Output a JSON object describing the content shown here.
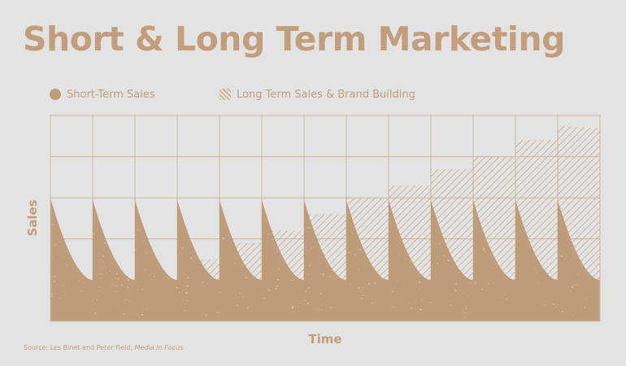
{
  "title": "Short & Long Term Marketing",
  "legend": {
    "short": "Short-Term Sales",
    "long": "Long Term Sales & Brand Building"
  },
  "source": {
    "prefix": "Source: Les Binet and Peter Field, ",
    "publication": "Media In Focus"
  },
  "colors": {
    "background": "#e3e3e3",
    "fill": "#bf9c7a",
    "hatch": "#c9ab8d",
    "grid": "#cdb8a2",
    "text": "#c29e7d"
  },
  "chart_data": {
    "type": "area",
    "xlabel": "Time",
    "ylabel": "Sales",
    "periods": 13,
    "ylim": [
      0,
      5
    ],
    "grid": true,
    "legend_position": "top-left",
    "series": [
      {
        "name": "Short-Term Sales",
        "style": "solid",
        "peak": [
          3.0,
          2.95,
          2.95,
          2.95,
          2.95,
          2.95,
          2.95,
          2.95,
          2.95,
          2.95,
          2.95,
          2.95,
          2.95
        ],
        "trough": [
          1.0,
          1.0,
          1.0,
          1.0,
          1.0,
          1.0,
          1.0,
          1.0,
          1.0,
          1.0,
          1.0,
          1.0,
          1.0
        ]
      },
      {
        "name": "Long Term Sales & Brand Building",
        "style": "hatched",
        "baseline": [
          1.0,
          1.0,
          1.0,
          1.5,
          1.9,
          2.2,
          2.6,
          3.0,
          3.3,
          3.7,
          4.0,
          4.4,
          4.75
        ]
      }
    ]
  }
}
